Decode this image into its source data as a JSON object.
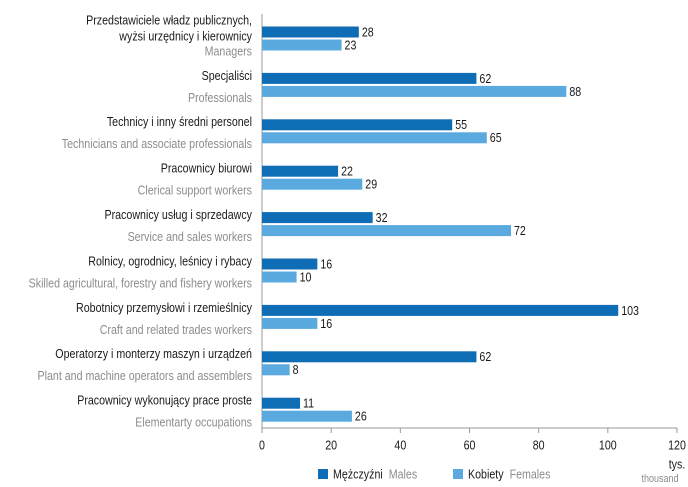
{
  "chart_data": {
    "type": "hbar",
    "categories": [
      [
        "Przedstawiciele władz publicznych,",
        "wyżsi urzędnicy i kierownicy"
      ],
      [
        "Specjaliści"
      ],
      [
        "Technicy i inny średni personel"
      ],
      [
        "Pracownicy biurowi"
      ],
      [
        "Pracownicy usług i sprzedawcy"
      ],
      [
        "Rolnicy, ogrodnicy, leśnicy i rybacy"
      ],
      [
        "Robotnicy przemysłowi i rzemieślnicy"
      ],
      [
        "Operatorzy i monterzy maszyn i urządzeń"
      ],
      [
        "Pracownicy wykonujący prace proste"
      ]
    ],
    "categories_en": [
      "Managers",
      "Professionals",
      "Technicians and associate professionals",
      "Clerical support workers",
      "Service and sales workers",
      "Skilled agricultural, forestry and fishery workers",
      "Craft and related trades workers",
      "Plant and machine operators and assemblers",
      "Elementarty occupations"
    ],
    "series": [
      {
        "name": "Mężczyźni",
        "name_en": "Males",
        "color": "#0f6db5",
        "values": [
          28,
          62,
          55,
          22,
          32,
          16,
          103,
          62,
          11
        ]
      },
      {
        "name": "Kobiety",
        "name_en": "Females",
        "color": "#5aa9df",
        "values": [
          23,
          88,
          65,
          29,
          72,
          10,
          16,
          8,
          26
        ]
      }
    ],
    "xlim": [
      0,
      120
    ],
    "xticks": [
      0,
      20,
      40,
      60,
      80,
      100,
      120
    ],
    "x_unit": "tys.",
    "x_unit_en": "thousand"
  }
}
